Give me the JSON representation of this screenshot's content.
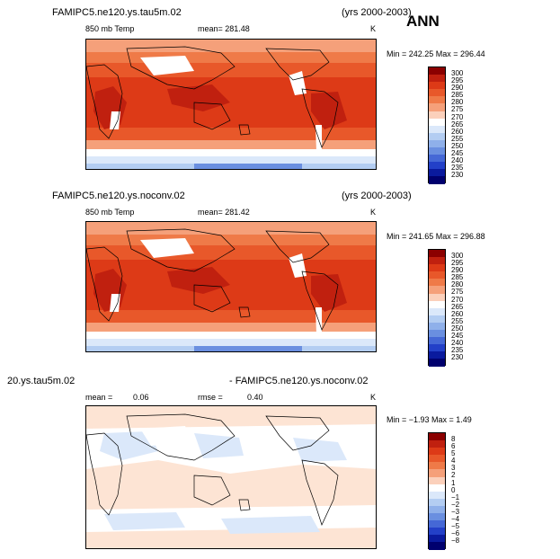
{
  "header": {
    "season": "ANN",
    "period_label": "(yrs 2000-2003)"
  },
  "panels": [
    {
      "case": "FAMIPC5.ne120.ys.tau5m.02",
      "field": "850 mb Temp",
      "stat": "mean= 281.48",
      "units": "K",
      "minmax": "Min = 242.25 Max = 296.44",
      "cbar_labels": [
        "300",
        "295",
        "290",
        "285",
        "280",
        "275",
        "270",
        "265",
        "260",
        "255",
        "250",
        "245",
        "240",
        "235",
        "230"
      ],
      "colors": [
        "#8b0000",
        "#c0200f",
        "#dd3a17",
        "#e8582a",
        "#ef7a48",
        "#f5a07a",
        "#fbd0bb",
        "#ffffff",
        "#dbe8fa",
        "#b3cdf2",
        "#8fb0ea",
        "#6a8fe0",
        "#4568d6",
        "#2340c8",
        "#0a1a9e",
        "#00006e"
      ]
    },
    {
      "case": "FAMIPC5.ne120.ys.noconv.02",
      "field": "850 mb Temp",
      "stat": "mean= 281.42",
      "units": "K",
      "minmax": "Min = 241.65 Max = 296.88",
      "cbar_labels": [
        "300",
        "295",
        "290",
        "285",
        "280",
        "275",
        "270",
        "265",
        "260",
        "255",
        "250",
        "245",
        "240",
        "235",
        "230"
      ],
      "colors": [
        "#8b0000",
        "#c0200f",
        "#dd3a17",
        "#e8582a",
        "#ef7a48",
        "#f5a07a",
        "#fbd0bb",
        "#ffffff",
        "#dbe8fa",
        "#b3cdf2",
        "#8fb0ea",
        "#6a8fe0",
        "#4568d6",
        "#2340c8",
        "#0a1a9e",
        "#00006e"
      ]
    },
    {
      "case_left": "20.ys.tau5m.02",
      "case_right": "- FAMIPC5.ne120.ys.noconv.02",
      "mean_label": "mean =",
      "mean_value": "0.06",
      "rmse_label": "rmse =",
      "rmse_value": "0.40",
      "units": "K",
      "minmax": "Min = −1.93 Max =    1.49",
      "cbar_labels": [
        "8",
        "6",
        "5",
        "4",
        "3",
        "2",
        "1",
        "0",
        "−1",
        "−2",
        "−3",
        "−4",
        "−5",
        "−6",
        "−8"
      ],
      "colors": [
        "#8b0000",
        "#c0200f",
        "#dd3a17",
        "#e8582a",
        "#ef7a48",
        "#f5a07a",
        "#fbd0bb",
        "#ffffff",
        "#dbe8fa",
        "#b3cdf2",
        "#8fb0ea",
        "#6a8fe0",
        "#4568d6",
        "#2340c8",
        "#0a1a9e",
        "#00006e"
      ]
    }
  ]
}
